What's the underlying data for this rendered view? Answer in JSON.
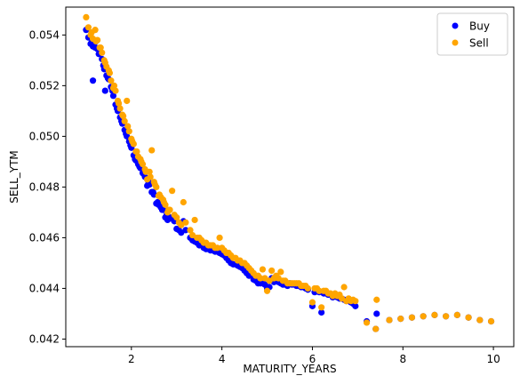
{
  "chart_data": {
    "type": "scatter",
    "title": "",
    "xlabel": "MATURITY_YEARS",
    "ylabel": "SELL_YTM",
    "xlim": [
      0.55,
      10.45
    ],
    "ylim": [
      0.0417,
      0.0551
    ],
    "xticks": [
      2,
      4,
      6,
      8,
      10
    ],
    "yticks": [
      0.042,
      0.044,
      0.046,
      0.048,
      0.05,
      0.052,
      0.054
    ],
    "grid": false,
    "legend": {
      "placement": "top-right",
      "entries": [
        "Buy",
        "Sell"
      ]
    },
    "colors": {
      "Buy": "#0000ff",
      "Sell": "#ffa500"
    },
    "series": [
      {
        "name": "Buy",
        "points": [
          [
            1.0,
            0.0542
          ],
          [
            1.05,
            0.0539
          ],
          [
            1.1,
            0.05365
          ],
          [
            1.15,
            0.05355
          ],
          [
            1.2,
            0.0535
          ],
          [
            1.25,
            0.05345
          ],
          [
            1.3,
            0.0533
          ],
          [
            1.35,
            0.05305
          ],
          [
            1.4,
            0.05265
          ],
          [
            1.45,
            0.0524
          ],
          [
            1.5,
            0.05225
          ],
          [
            1.55,
            0.05195
          ],
          [
            1.6,
            0.0516
          ],
          [
            1.65,
            0.05125
          ],
          [
            1.7,
            0.051
          ],
          [
            1.75,
            0.05075
          ],
          [
            1.8,
            0.0505
          ],
          [
            1.85,
            0.05025
          ],
          [
            1.9,
            0.05
          ],
          [
            1.95,
            0.0498
          ],
          [
            2.0,
            0.04955
          ],
          [
            2.05,
            0.04925
          ],
          [
            2.1,
            0.04905
          ],
          [
            2.15,
            0.0489
          ],
          [
            2.2,
            0.04875
          ],
          [
            2.25,
            0.04855
          ],
          [
            2.3,
            0.0484
          ],
          [
            2.35,
            0.04805
          ],
          [
            2.4,
            0.0481
          ],
          [
            2.45,
            0.0478
          ],
          [
            2.5,
            0.0477
          ],
          [
            2.55,
            0.04735
          ],
          [
            2.6,
            0.0473
          ],
          [
            2.65,
            0.0472
          ],
          [
            2.7,
            0.0471
          ],
          [
            2.75,
            0.0468
          ],
          [
            2.8,
            0.0467
          ],
          [
            2.85,
            0.0468
          ],
          [
            2.9,
            0.04675
          ],
          [
            2.95,
            0.04665
          ],
          [
            3.0,
            0.04635
          ],
          [
            3.05,
            0.0463
          ],
          [
            3.1,
            0.0462
          ],
          [
            3.15,
            0.04665
          ],
          [
            3.2,
            0.0463
          ],
          [
            3.3,
            0.046
          ],
          [
            3.4,
            0.04585
          ],
          [
            3.5,
            0.0457
          ],
          [
            3.6,
            0.0456
          ],
          [
            3.7,
            0.04555
          ],
          [
            3.8,
            0.0455
          ],
          [
            3.9,
            0.04545
          ],
          [
            4.0,
            0.04535
          ],
          [
            4.1,
            0.0452
          ],
          [
            4.2,
            0.045
          ],
          [
            4.3,
            0.04495
          ],
          [
            4.4,
            0.04485
          ],
          [
            4.5,
            0.0447
          ],
          [
            4.6,
            0.0445
          ],
          [
            4.7,
            0.04435
          ],
          [
            4.8,
            0.0442
          ],
          [
            4.9,
            0.0442
          ],
          [
            5.0,
            0.044
          ],
          [
            5.1,
            0.0444
          ],
          [
            5.2,
            0.0443
          ],
          [
            5.3,
            0.0442
          ],
          [
            5.4,
            0.04415
          ],
          [
            5.5,
            0.0442
          ],
          [
            5.6,
            0.04415
          ],
          [
            5.7,
            0.0441
          ],
          [
            5.8,
            0.04405
          ],
          [
            5.9,
            0.04395
          ],
          [
            6.0,
            0.0433
          ],
          [
            6.1,
            0.0439
          ],
          [
            6.2,
            0.04305
          ],
          [
            6.3,
            0.0438
          ],
          [
            6.4,
            0.04375
          ],
          [
            6.5,
            0.0437
          ],
          [
            6.6,
            0.0436
          ],
          [
            6.7,
            0.04355
          ],
          [
            6.8,
            0.0435
          ],
          [
            6.9,
            0.0434
          ],
          [
            6.95,
            0.0433
          ],
          [
            7.2,
            0.0427
          ],
          [
            7.4,
            0.0424
          ],
          [
            7.42,
            0.043
          ],
          [
            7.7,
            0.04275
          ],
          [
            7.95,
            0.0428
          ],
          [
            8.2,
            0.04285
          ],
          [
            8.45,
            0.0429
          ],
          [
            8.7,
            0.04295
          ],
          [
            8.95,
            0.0429
          ],
          [
            9.2,
            0.04295
          ],
          [
            9.45,
            0.04285
          ],
          [
            9.7,
            0.04275
          ],
          [
            9.95,
            0.0427
          ],
          [
            1.12,
            0.0537
          ],
          [
            1.18,
            0.05365
          ],
          [
            1.28,
            0.05325
          ],
          [
            1.38,
            0.0528
          ],
          [
            1.48,
            0.0523
          ],
          [
            1.58,
            0.0518
          ],
          [
            1.68,
            0.0511
          ],
          [
            1.78,
            0.0506
          ],
          [
            1.88,
            0.0501
          ],
          [
            1.98,
            0.04965
          ],
          [
            2.08,
            0.0491
          ],
          [
            2.18,
            0.0488
          ],
          [
            2.28,
            0.0485
          ],
          [
            2.38,
            0.0482
          ],
          [
            2.48,
            0.0478
          ],
          [
            2.58,
            0.0474
          ],
          [
            2.68,
            0.0471
          ],
          [
            2.78,
            0.0469
          ],
          [
            1.15,
            0.0522
          ],
          [
            1.42,
            0.0518
          ],
          [
            3.35,
            0.0459
          ],
          [
            3.45,
            0.0458
          ],
          [
            3.55,
            0.0457
          ],
          [
            3.65,
            0.04555
          ],
          [
            3.75,
            0.0455
          ],
          [
            3.85,
            0.04545
          ],
          [
            3.95,
            0.0454
          ],
          [
            4.05,
            0.0453
          ],
          [
            4.15,
            0.0451
          ],
          [
            4.25,
            0.04495
          ],
          [
            4.35,
            0.0449
          ],
          [
            4.45,
            0.0448
          ],
          [
            4.55,
            0.0446
          ],
          [
            4.65,
            0.0445
          ],
          [
            4.75,
            0.0443
          ],
          [
            4.85,
            0.0442
          ],
          [
            4.95,
            0.04415
          ],
          [
            5.05,
            0.04405
          ],
          [
            5.15,
            0.04425
          ],
          [
            5.25,
            0.04425
          ],
          [
            5.35,
            0.04415
          ],
          [
            5.45,
            0.0441
          ],
          [
            5.55,
            0.04415
          ],
          [
            5.65,
            0.0441
          ],
          [
            5.75,
            0.04405
          ],
          [
            5.85,
            0.044
          ],
          [
            6.05,
            0.04385
          ],
          [
            6.15,
            0.04385
          ],
          [
            6.25,
            0.0438
          ],
          [
            6.35,
            0.04375
          ],
          [
            6.45,
            0.04365
          ],
          [
            6.55,
            0.04365
          ],
          [
            6.65,
            0.0436
          ],
          [
            6.75,
            0.0435
          ],
          [
            6.85,
            0.04345
          ]
        ]
      },
      {
        "name": "Sell",
        "points": [
          [
            1.0,
            0.0547
          ],
          [
            1.05,
            0.0543
          ],
          [
            1.1,
            0.054
          ],
          [
            1.15,
            0.05385
          ],
          [
            1.2,
            0.0542
          ],
          [
            1.25,
            0.0538
          ],
          [
            1.3,
            0.0535
          ],
          [
            1.35,
            0.0533
          ],
          [
            1.4,
            0.053
          ],
          [
            1.45,
            0.05275
          ],
          [
            1.5,
            0.0526
          ],
          [
            1.55,
            0.0522
          ],
          [
            1.6,
            0.0519
          ],
          [
            1.65,
            0.0518
          ],
          [
            1.7,
            0.0514
          ],
          [
            1.75,
            0.0511
          ],
          [
            1.8,
            0.05085
          ],
          [
            1.85,
            0.0506
          ],
          [
            1.9,
            0.0514
          ],
          [
            1.95,
            0.0502
          ],
          [
            2.0,
            0.0499
          ],
          [
            2.05,
            0.0497
          ],
          [
            2.1,
            0.0494
          ],
          [
            2.15,
            0.0492
          ],
          [
            2.2,
            0.0491
          ],
          [
            2.25,
            0.0489
          ],
          [
            2.3,
            0.0487
          ],
          [
            2.35,
            0.0483
          ],
          [
            2.4,
            0.0486
          ],
          [
            2.45,
            0.04945
          ],
          [
            2.5,
            0.0482
          ],
          [
            2.55,
            0.048
          ],
          [
            2.6,
            0.04765
          ],
          [
            2.65,
            0.0476
          ],
          [
            2.7,
            0.0475
          ],
          [
            2.75,
            0.0473
          ],
          [
            2.8,
            0.047
          ],
          [
            2.85,
            0.0471
          ],
          [
            2.9,
            0.04785
          ],
          [
            2.95,
            0.0469
          ],
          [
            3.0,
            0.0468
          ],
          [
            3.05,
            0.0466
          ],
          [
            3.1,
            0.0465
          ],
          [
            3.15,
            0.0474
          ],
          [
            3.2,
            0.0466
          ],
          [
            3.3,
            0.0463
          ],
          [
            3.4,
            0.0467
          ],
          [
            3.5,
            0.046
          ],
          [
            3.6,
            0.0458
          ],
          [
            3.7,
            0.0457
          ],
          [
            3.8,
            0.0457
          ],
          [
            3.9,
            0.0456
          ],
          [
            3.95,
            0.046
          ],
          [
            4.0,
            0.0456
          ],
          [
            4.1,
            0.0454
          ],
          [
            4.2,
            0.0453
          ],
          [
            4.3,
            0.0452
          ],
          [
            4.4,
            0.0451
          ],
          [
            4.5,
            0.045
          ],
          [
            4.6,
            0.0448
          ],
          [
            4.7,
            0.0446
          ],
          [
            4.8,
            0.0445
          ],
          [
            4.9,
            0.04475
          ],
          [
            5.0,
            0.0439
          ],
          [
            5.1,
            0.0447
          ],
          [
            5.2,
            0.0445
          ],
          [
            5.3,
            0.04465
          ],
          [
            5.4,
            0.0443
          ],
          [
            5.5,
            0.0442
          ],
          [
            5.6,
            0.0442
          ],
          [
            5.7,
            0.0442
          ],
          [
            5.8,
            0.0441
          ],
          [
            5.9,
            0.044
          ],
          [
            6.0,
            0.04345
          ],
          [
            6.1,
            0.044
          ],
          [
            6.2,
            0.04325
          ],
          [
            6.3,
            0.0439
          ],
          [
            6.4,
            0.0438
          ],
          [
            6.5,
            0.0438
          ],
          [
            6.6,
            0.04375
          ],
          [
            6.7,
            0.04405
          ],
          [
            6.8,
            0.0436
          ],
          [
            6.9,
            0.04355
          ],
          [
            6.95,
            0.0435
          ],
          [
            7.2,
            0.04265
          ],
          [
            7.4,
            0.0424
          ],
          [
            7.42,
            0.04355
          ],
          [
            7.7,
            0.04275
          ],
          [
            7.95,
            0.0428
          ],
          [
            8.2,
            0.04285
          ],
          [
            8.45,
            0.0429
          ],
          [
            8.7,
            0.04295
          ],
          [
            8.95,
            0.0429
          ],
          [
            9.2,
            0.04295
          ],
          [
            9.45,
            0.04285
          ],
          [
            9.7,
            0.04275
          ],
          [
            9.95,
            0.0427
          ],
          [
            1.12,
            0.0541
          ],
          [
            1.22,
            0.05375
          ],
          [
            1.32,
            0.0535
          ],
          [
            1.42,
            0.0529
          ],
          [
            1.52,
            0.0525
          ],
          [
            1.62,
            0.052
          ],
          [
            1.72,
            0.0513
          ],
          [
            1.82,
            0.0508
          ],
          [
            1.92,
            0.0504
          ],
          [
            2.02,
            0.0498
          ],
          [
            2.12,
            0.0494
          ],
          [
            2.22,
            0.049
          ],
          [
            2.32,
            0.0486
          ],
          [
            2.42,
            0.0484
          ],
          [
            2.52,
            0.0481
          ],
          [
            2.62,
            0.0477
          ],
          [
            2.72,
            0.0474
          ],
          [
            2.82,
            0.0471
          ],
          [
            3.35,
            0.0461
          ],
          [
            3.45,
            0.046
          ],
          [
            3.55,
            0.0459
          ],
          [
            3.65,
            0.0458
          ],
          [
            3.75,
            0.0457
          ],
          [
            3.85,
            0.0456
          ],
          [
            4.05,
            0.0455
          ],
          [
            4.15,
            0.0454
          ],
          [
            4.25,
            0.0452
          ],
          [
            4.35,
            0.0451
          ],
          [
            4.45,
            0.045
          ],
          [
            4.55,
            0.0449
          ],
          [
            4.65,
            0.0447
          ],
          [
            4.75,
            0.0445
          ],
          [
            4.85,
            0.0444
          ],
          [
            4.95,
            0.0444
          ],
          [
            5.05,
            0.0443
          ],
          [
            5.15,
            0.0444
          ],
          [
            5.25,
            0.0444
          ],
          [
            5.35,
            0.0443
          ],
          [
            5.45,
            0.0442
          ],
          [
            5.55,
            0.0442
          ],
          [
            5.65,
            0.0442
          ],
          [
            5.75,
            0.0441
          ],
          [
            5.85,
            0.0441
          ],
          [
            6.05,
            0.044
          ],
          [
            6.15,
            0.0439
          ],
          [
            6.25,
            0.0439
          ],
          [
            6.35,
            0.0438
          ],
          [
            6.45,
            0.0437
          ],
          [
            6.55,
            0.0437
          ],
          [
            6.65,
            0.0436
          ],
          [
            6.75,
            0.0435
          ],
          [
            6.85,
            0.0435
          ]
        ]
      }
    ]
  }
}
